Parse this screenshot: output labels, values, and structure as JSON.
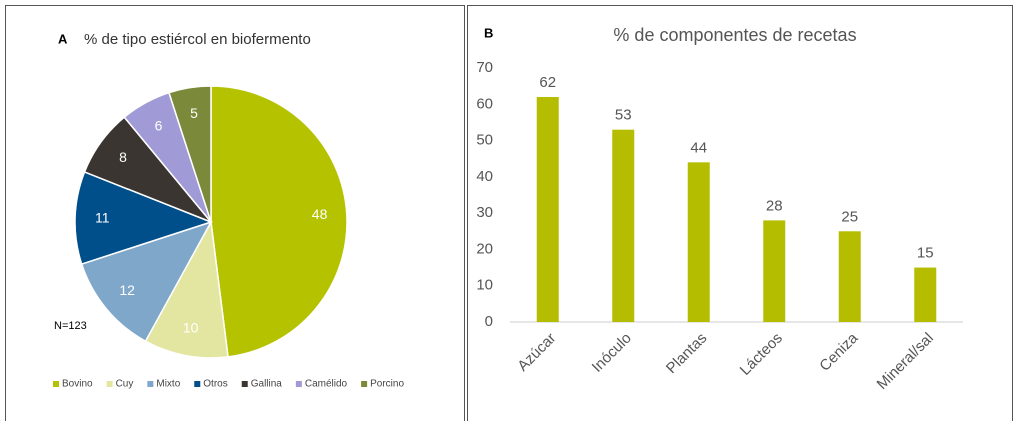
{
  "chart_data": [
    {
      "type": "pie",
      "panel": "A",
      "title": "% de tipo estiércol en biofermento",
      "annotation": "N=123",
      "categories": [
        "Bovino",
        "Cuy",
        "Mixto",
        "Otros",
        "Gallina",
        "Camélido",
        "Porcino"
      ],
      "values": [
        48,
        10,
        12,
        11,
        8,
        6,
        5
      ],
      "colors": [
        "#b5c200",
        "#e3e6a0",
        "#7fa7c9",
        "#004f8a",
        "#3a3530",
        "#a09ad6",
        "#7a8a3a"
      ],
      "legend": "bottom"
    },
    {
      "type": "bar",
      "panel": "B",
      "title": "% de componentes de recetas",
      "categories": [
        "Azúcar",
        "Inóculo",
        "Plantas",
        "Lácteos",
        "Ceniza",
        "Mineral/sal"
      ],
      "values": [
        62,
        53,
        44,
        28,
        25,
        15
      ],
      "color": "#b5bd00",
      "ylim": [
        0,
        70
      ],
      "yticks": [
        0,
        10,
        20,
        30,
        40,
        50,
        60,
        70
      ],
      "grid": false
    }
  ]
}
